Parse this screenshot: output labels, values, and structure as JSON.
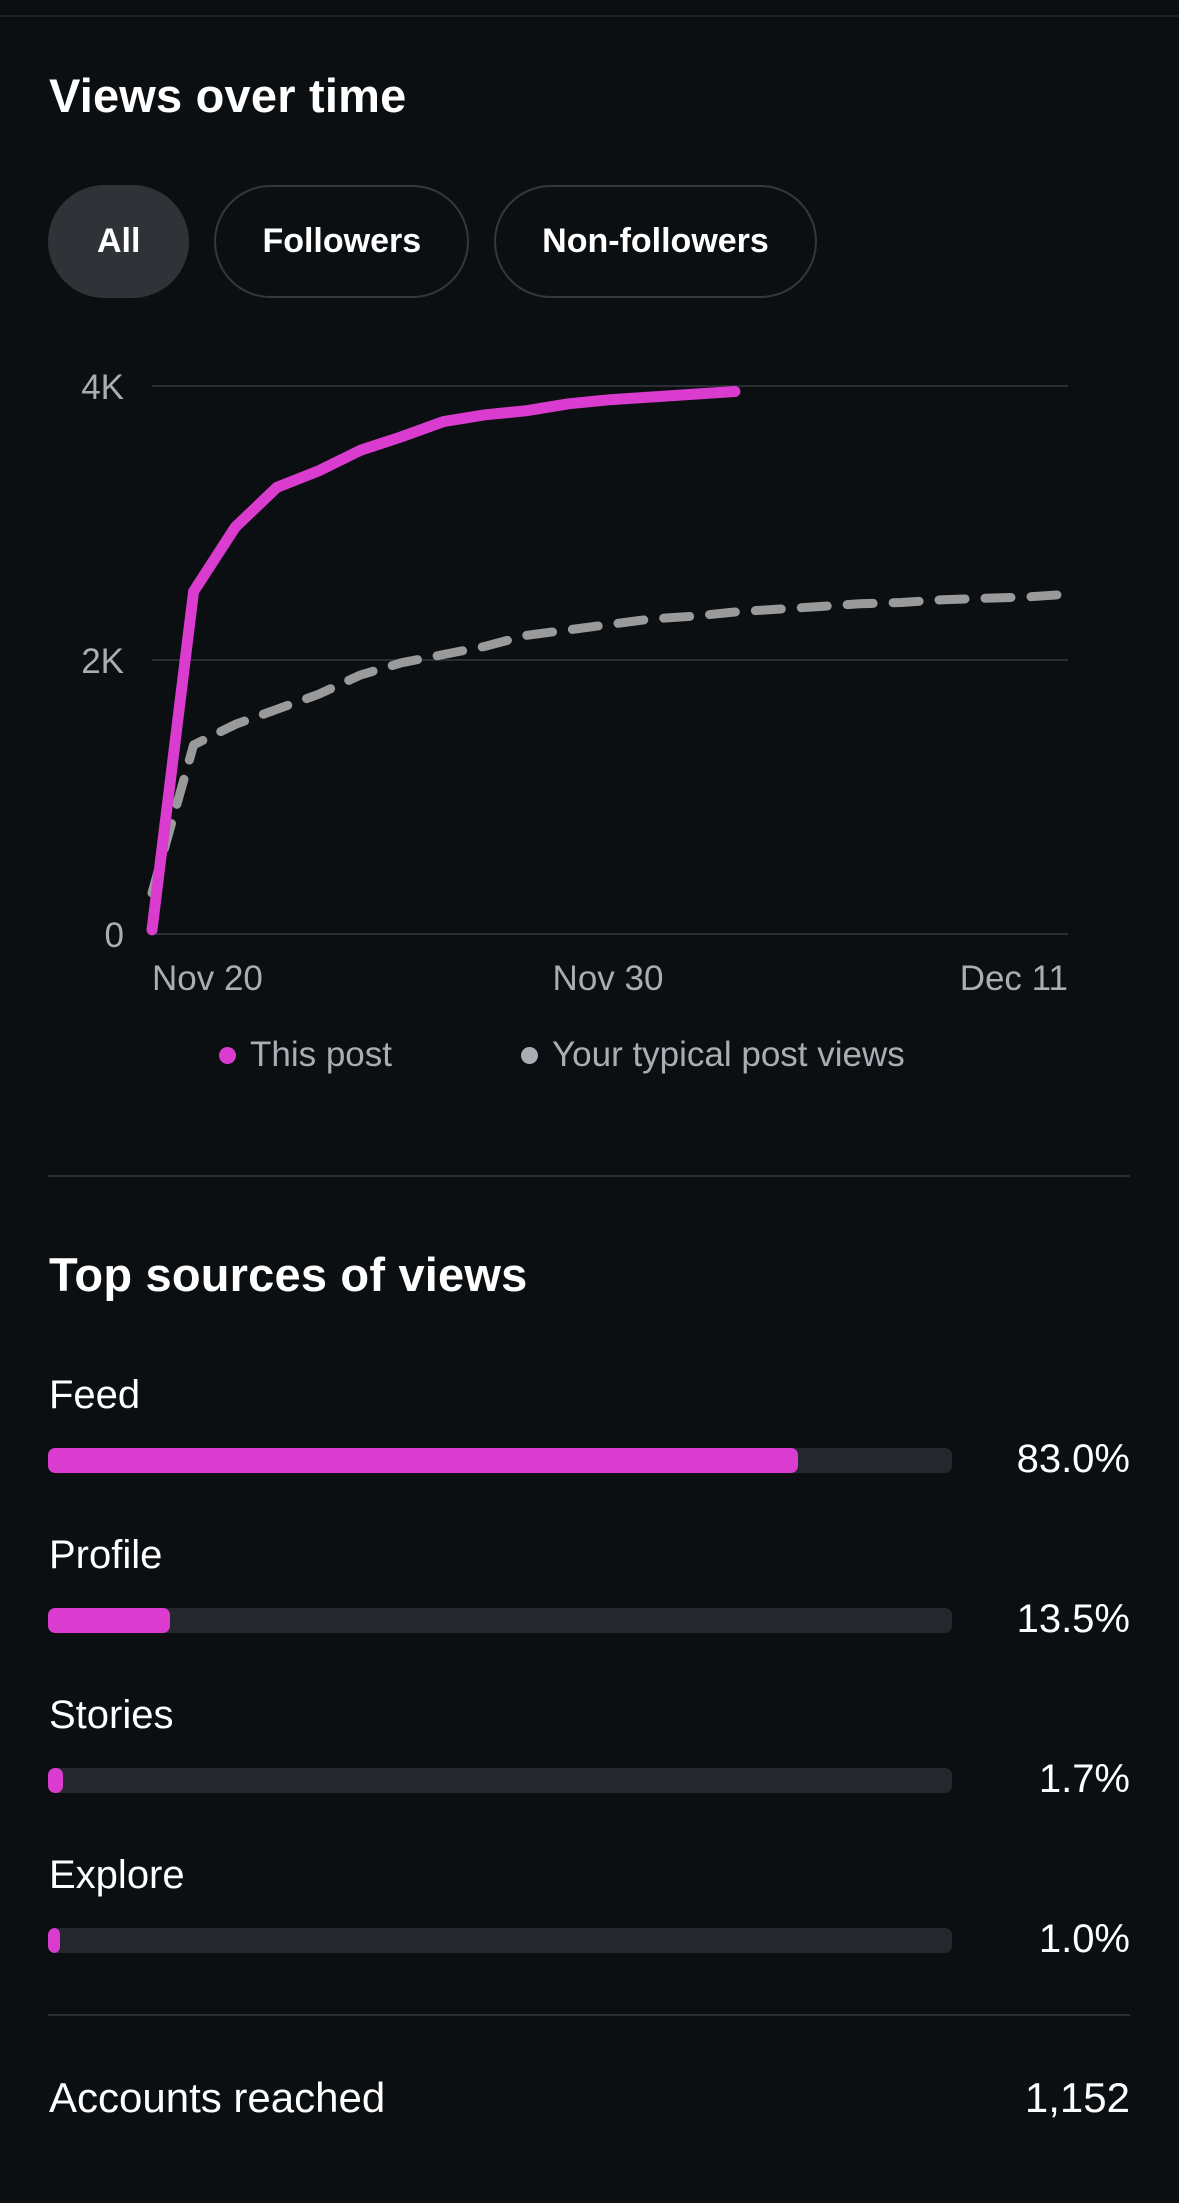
{
  "views_section": {
    "title": "Views over time",
    "filters": [
      {
        "label": "All",
        "active": true
      },
      {
        "label": "Followers",
        "active": false
      },
      {
        "label": "Non-followers",
        "active": false
      }
    ]
  },
  "chart_data": {
    "type": "line",
    "title": "",
    "xlabel": "",
    "ylabel": "",
    "y_ticks": [
      "4K",
      "2K",
      "0"
    ],
    "x_ticks": [
      "Nov 20",
      "Nov 30",
      "Dec 11"
    ],
    "ylim": [
      0,
      4000
    ],
    "x_range": [
      "2023-11-19",
      "2023-12-11"
    ],
    "grid": true,
    "legend": "bottom",
    "series": [
      {
        "name": "This post",
        "color": "#d93cce",
        "style": "solid",
        "x": [
          "2023-11-19",
          "2023-11-20",
          "2023-11-21",
          "2023-11-22",
          "2023-11-23",
          "2023-11-24",
          "2023-11-25",
          "2023-11-26",
          "2023-11-27",
          "2023-11-28",
          "2023-11-29",
          "2023-11-30",
          "2023-12-01",
          "2023-12-02",
          "2023-12-03"
        ],
        "y": [
          30,
          2500,
          2970,
          3260,
          3380,
          3530,
          3630,
          3740,
          3790,
          3820,
          3870,
          3900,
          3920,
          3940,
          3960
        ]
      },
      {
        "name": "Your typical post views",
        "color": "#9a9a9a",
        "style": "dashed",
        "x": [
          "2023-11-19",
          "2023-11-20",
          "2023-11-21",
          "2023-11-22",
          "2023-11-23",
          "2023-11-24",
          "2023-11-25",
          "2023-11-26",
          "2023-11-27",
          "2023-11-28",
          "2023-11-29",
          "2023-11-30",
          "2023-12-01",
          "2023-12-02",
          "2023-12-03",
          "2023-12-04",
          "2023-12-05",
          "2023-12-06",
          "2023-12-07",
          "2023-12-08",
          "2023-12-09",
          "2023-12-10",
          "2023-12-11"
        ],
        "y": [
          300,
          1380,
          1530,
          1640,
          1750,
          1890,
          1980,
          2040,
          2100,
          2180,
          2220,
          2260,
          2300,
          2320,
          2350,
          2370,
          2390,
          2410,
          2420,
          2440,
          2450,
          2460,
          2480
        ]
      }
    ]
  },
  "sources_section": {
    "title": "Top sources of views",
    "items": [
      {
        "label": "Feed",
        "percent": "83.0%",
        "value": 83.0
      },
      {
        "label": "Profile",
        "percent": "13.5%",
        "value": 13.5
      },
      {
        "label": "Stories",
        "percent": "1.7%",
        "value": 1.7
      },
      {
        "label": "Explore",
        "percent": "1.0%",
        "value": 1.0
      }
    ]
  },
  "accounts_reached": {
    "label": "Accounts reached",
    "value": "1,152"
  }
}
